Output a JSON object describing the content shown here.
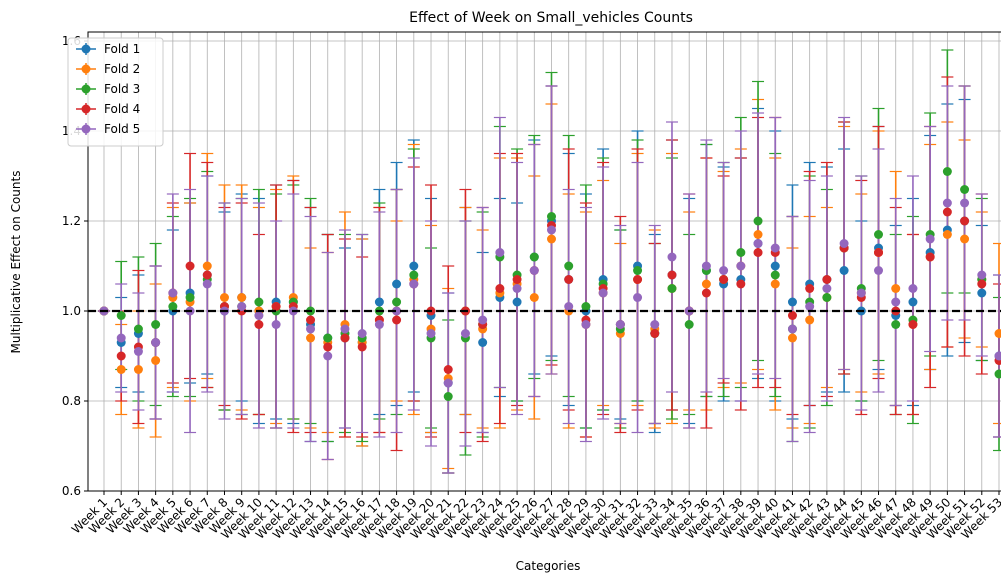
{
  "chart_data": {
    "type": "scatter",
    "title": "Effect of Week on Small_vehicles Counts",
    "xlabel": "Categories",
    "ylabel": "Multiplicative Effect on Counts",
    "ylim": [
      0.6,
      1.62
    ],
    "yticks": [
      0.6,
      0.8,
      1.0,
      1.2,
      1.4,
      1.6
    ],
    "grid": true,
    "reference_line": 1.0,
    "legend_position": "upper-left",
    "categories": [
      "Week 1",
      "Week 2",
      "Week 3",
      "Week 4",
      "Week 5",
      "Week 6",
      "Week 7",
      "Week 8",
      "Week 9",
      "Week 10",
      "Week 11",
      "Week 12",
      "Week 13",
      "Week 14",
      "Week 15",
      "Week 16",
      "Week 17",
      "Week 18",
      "Week 19",
      "Week 20",
      "Week 21",
      "Week 22",
      "Week 23",
      "Week 24",
      "Week 25",
      "Week 26",
      "Week 27",
      "Week 28",
      "Week 29",
      "Week 30",
      "Week 31",
      "Week 32",
      "Week 33",
      "Week 34",
      "Week 35",
      "Week 36",
      "Week 37",
      "Week 38",
      "Week 39",
      "Week 40",
      "Week 41",
      "Week 42",
      "Week 43",
      "Week 44",
      "Week 45",
      "Week 46",
      "Week 47",
      "Week 48",
      "Week 49",
      "Week 50",
      "Week 51",
      "Week 52",
      "Week 53"
    ],
    "series": [
      {
        "name": "Fold 1",
        "color": "#1f77b4",
        "values": [
          1.0,
          0.93,
          0.95,
          0.93,
          1.0,
          1.04,
          1.08,
          1.0,
          1.03,
          1.0,
          1.02,
          1.02,
          0.97,
          0.94,
          0.94,
          0.93,
          1.02,
          1.06,
          1.1,
          0.99,
          0.84,
          1.0,
          0.93,
          1.03,
          1.02,
          1.12,
          1.2,
          1.07,
          1.0,
          1.07,
          0.97,
          1.1,
          0.95,
          1.08,
          1.0,
          1.09,
          1.06,
          1.07,
          1.15,
          1.1,
          1.02,
          1.06,
          1.07,
          1.09,
          1.0,
          1.14,
          0.99,
          1.02,
          1.13,
          1.18,
          1.2,
          1.04,
          0.9
        ],
        "err": [
          0.0,
          0.1,
          0.13,
          0.17,
          0.18,
          0.2,
          0.22,
          0.22,
          0.23,
          0.25,
          0.26,
          0.27,
          0.26,
          0.23,
          0.2,
          0.23,
          0.25,
          0.27,
          0.28,
          0.26,
          0.2,
          0.23,
          0.2,
          0.22,
          0.22,
          0.26,
          0.3,
          0.28,
          0.26,
          0.29,
          0.21,
          0.3,
          0.22,
          0.3,
          0.25,
          0.28,
          0.26,
          0.27,
          0.3,
          0.3,
          0.26,
          0.27,
          0.25,
          0.27,
          0.2,
          0.27,
          0.2,
          0.23,
          0.26,
          0.28,
          0.27,
          0.15,
          0.18
        ]
      },
      {
        "name": "Fold 2",
        "color": "#ff7f0e",
        "values": [
          1.0,
          0.87,
          0.87,
          0.89,
          1.03,
          1.02,
          1.1,
          1.03,
          1.03,
          1.0,
          1.01,
          1.03,
          0.94,
          0.93,
          0.97,
          0.93,
          0.98,
          1.0,
          1.07,
          0.96,
          0.85,
          1.0,
          0.96,
          1.04,
          1.06,
          1.03,
          1.16,
          1.0,
          0.97,
          1.04,
          0.95,
          1.07,
          0.96,
          1.05,
          1.0,
          1.06,
          1.07,
          1.1,
          1.17,
          1.06,
          0.94,
          0.98,
          1.03,
          1.14,
          1.04,
          1.13,
          1.05,
          0.97,
          1.12,
          1.17,
          1.16,
          1.07,
          0.95
        ],
        "err": [
          0.0,
          0.1,
          0.13,
          0.17,
          0.2,
          0.22,
          0.25,
          0.25,
          0.25,
          0.23,
          0.26,
          0.27,
          0.2,
          0.2,
          0.25,
          0.23,
          0.25,
          0.2,
          0.3,
          0.23,
          0.2,
          0.23,
          0.22,
          0.3,
          0.28,
          0.27,
          0.3,
          0.26,
          0.25,
          0.25,
          0.2,
          0.28,
          0.22,
          0.3,
          0.22,
          0.28,
          0.24,
          0.26,
          0.3,
          0.28,
          0.2,
          0.23,
          0.2,
          0.27,
          0.22,
          0.27,
          0.26,
          0.2,
          0.25,
          0.25,
          0.22,
          0.15,
          0.2
        ]
      },
      {
        "name": "Fold 3",
        "color": "#2ca02c",
        "values": [
          1.0,
          0.99,
          0.96,
          0.97,
          1.01,
          1.03,
          1.07,
          1.01,
          1.01,
          1.02,
          1.0,
          1.02,
          1.0,
          0.94,
          0.95,
          0.94,
          1.0,
          1.02,
          1.08,
          0.94,
          0.81,
          0.94,
          0.97,
          1.12,
          1.08,
          1.12,
          1.21,
          1.1,
          1.01,
          1.06,
          0.96,
          1.09,
          0.95,
          1.05,
          0.97,
          1.09,
          1.07,
          1.13,
          1.2,
          1.08,
          0.96,
          1.02,
          1.03,
          1.14,
          1.05,
          1.17,
          0.97,
          0.98,
          1.17,
          1.31,
          1.27,
          1.07,
          0.86
        ],
        "err": [
          0.0,
          0.12,
          0.16,
          0.18,
          0.2,
          0.22,
          0.24,
          0.23,
          0.24,
          0.25,
          0.26,
          0.26,
          0.25,
          0.23,
          0.22,
          0.23,
          0.24,
          0.25,
          0.28,
          0.2,
          0.17,
          0.26,
          0.25,
          0.29,
          0.28,
          0.27,
          0.32,
          0.29,
          0.27,
          0.28,
          0.22,
          0.29,
          0.2,
          0.29,
          0.2,
          0.28,
          0.26,
          0.3,
          0.31,
          0.27,
          0.25,
          0.28,
          0.24,
          0.28,
          0.25,
          0.28,
          0.2,
          0.23,
          0.27,
          0.27,
          0.23,
          0.18,
          0.17
        ]
      },
      {
        "name": "Fold 4",
        "color": "#d62728",
        "values": [
          1.0,
          0.9,
          0.92,
          0.93,
          1.04,
          1.1,
          1.08,
          1.01,
          1.0,
          0.97,
          1.01,
          1.01,
          0.98,
          0.92,
          0.94,
          0.92,
          0.98,
          0.98,
          1.06,
          1.0,
          0.87,
          1.0,
          0.97,
          1.05,
          1.07,
          1.09,
          1.19,
          1.07,
          0.98,
          1.05,
          0.97,
          1.07,
          0.95,
          1.08,
          1.0,
          1.04,
          1.07,
          1.06,
          1.13,
          1.13,
          0.99,
          1.05,
          1.07,
          1.14,
          1.03,
          1.13,
          1.0,
          0.97,
          1.12,
          1.22,
          1.2,
          1.06,
          0.89
        ],
        "err": [
          0.0,
          0.1,
          0.17,
          0.17,
          0.2,
          0.25,
          0.25,
          0.22,
          0.24,
          0.2,
          0.27,
          0.28,
          0.25,
          0.25,
          0.22,
          0.2,
          0.25,
          0.29,
          0.26,
          0.28,
          0.23,
          0.27,
          0.26,
          0.3,
          0.28,
          0.28,
          0.31,
          0.29,
          0.26,
          0.28,
          0.24,
          0.29,
          0.2,
          0.3,
          0.26,
          0.3,
          0.23,
          0.28,
          0.3,
          0.3,
          0.22,
          0.26,
          0.26,
          0.28,
          0.26,
          0.28,
          0.23,
          0.2,
          0.29,
          0.3,
          0.3,
          0.2,
          0.17
        ]
      },
      {
        "name": "Fold 5",
        "color": "#9467bd",
        "values": [
          1.0,
          0.94,
          0.91,
          0.93,
          1.04,
          1.0,
          1.06,
          1.0,
          1.01,
          0.99,
          0.97,
          1.0,
          0.96,
          0.9,
          0.96,
          0.95,
          0.97,
          1.0,
          1.06,
          0.95,
          0.84,
          0.95,
          0.98,
          1.13,
          1.05,
          1.09,
          1.18,
          1.01,
          0.97,
          1.04,
          0.97,
          1.03,
          0.97,
          1.12,
          1.0,
          1.1,
          1.09,
          1.1,
          1.15,
          1.14,
          0.96,
          1.01,
          1.05,
          1.15,
          1.04,
          1.09,
          1.02,
          1.05,
          1.16,
          1.24,
          1.24,
          1.08,
          0.9
        ],
        "err": [
          0.0,
          0.12,
          0.13,
          0.17,
          0.22,
          0.27,
          0.24,
          0.24,
          0.24,
          0.25,
          0.23,
          0.26,
          0.25,
          0.23,
          0.22,
          0.22,
          0.25,
          0.27,
          0.28,
          0.25,
          0.2,
          0.25,
          0.25,
          0.3,
          0.28,
          0.28,
          0.32,
          0.26,
          0.26,
          0.28,
          0.22,
          0.3,
          0.22,
          0.3,
          0.26,
          0.28,
          0.24,
          0.3,
          0.29,
          0.29,
          0.25,
          0.28,
          0.25,
          0.28,
          0.26,
          0.27,
          0.23,
          0.25,
          0.25,
          0.26,
          0.26,
          0.18,
          0.18
        ]
      }
    ]
  }
}
